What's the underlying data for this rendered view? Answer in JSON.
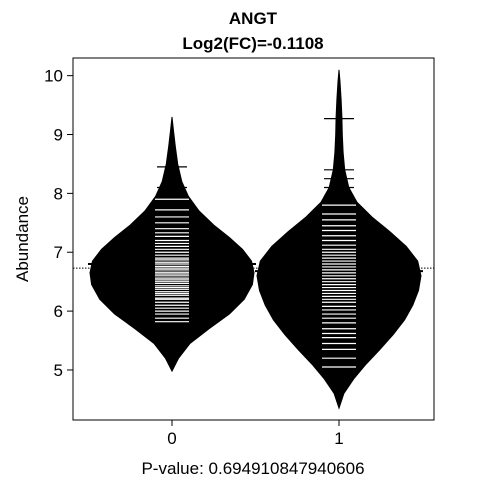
{
  "chart_data": {
    "type": "beanplot",
    "title": "ANGT",
    "subtitle": "Log2(FC)=-0.1108",
    "xlabel": "P-value: 0.694910847940606",
    "ylabel": "Abundance",
    "categories": [
      "0",
      "1"
    ],
    "ylim": [
      4.15,
      10.3
    ],
    "yticks": [
      5,
      6,
      7,
      8,
      9,
      10
    ],
    "overall_mean": 6.73,
    "grid": false,
    "legend": "none",
    "colors": {
      "bean": "#000000",
      "lines": "#ffffff",
      "axes": "#000000"
    },
    "groups": [
      {
        "name": "0",
        "mean": 6.8,
        "range": [
          4.98,
          9.3
        ],
        "density": [
          [
            4.98,
            0.0
          ],
          [
            5.2,
            0.08
          ],
          [
            5.45,
            0.22
          ],
          [
            5.7,
            0.45
          ],
          [
            5.95,
            0.7
          ],
          [
            6.2,
            0.88
          ],
          [
            6.45,
            0.98
          ],
          [
            6.65,
            1.0
          ],
          [
            6.85,
            0.97
          ],
          [
            7.05,
            0.86
          ],
          [
            7.25,
            0.7
          ],
          [
            7.45,
            0.52
          ],
          [
            7.7,
            0.33
          ],
          [
            7.95,
            0.2
          ],
          [
            8.2,
            0.12
          ],
          [
            8.5,
            0.07
          ],
          [
            8.8,
            0.04
          ],
          [
            9.05,
            0.02
          ],
          [
            9.3,
            0.0
          ]
        ],
        "observations": [
          5.82,
          5.88,
          5.95,
          6.0,
          6.05,
          6.1,
          6.15,
          6.2,
          6.22,
          6.27,
          6.3,
          6.33,
          6.37,
          6.4,
          6.43,
          6.47,
          6.5,
          6.53,
          6.56,
          6.6,
          6.63,
          6.66,
          6.7,
          6.73,
          6.76,
          6.8,
          6.83,
          6.87,
          6.9,
          6.95,
          7.0,
          7.05,
          7.1,
          7.15,
          7.2,
          7.27,
          7.33,
          7.4,
          7.5,
          7.6,
          7.72,
          7.9,
          8.1,
          8.45
        ]
      },
      {
        "name": "1",
        "mean": 6.68,
        "range": [
          4.35,
          10.1
        ],
        "density": [
          [
            4.35,
            0.0
          ],
          [
            4.6,
            0.06
          ],
          [
            4.85,
            0.18
          ],
          [
            5.1,
            0.33
          ],
          [
            5.35,
            0.5
          ],
          [
            5.6,
            0.66
          ],
          [
            5.85,
            0.8
          ],
          [
            6.1,
            0.9
          ],
          [
            6.35,
            0.97
          ],
          [
            6.6,
            1.0
          ],
          [
            6.85,
            0.96
          ],
          [
            7.1,
            0.82
          ],
          [
            7.35,
            0.62
          ],
          [
            7.6,
            0.4
          ],
          [
            7.85,
            0.22
          ],
          [
            8.1,
            0.12
          ],
          [
            8.4,
            0.07
          ],
          [
            8.7,
            0.05
          ],
          [
            9.0,
            0.04
          ],
          [
            9.3,
            0.035
          ],
          [
            9.6,
            0.025
          ],
          [
            9.9,
            0.012
          ],
          [
            10.1,
            0.0
          ]
        ],
        "observations": [
          5.05,
          5.2,
          5.35,
          5.45,
          5.55,
          5.62,
          5.7,
          5.8,
          5.88,
          5.95,
          6.02,
          6.08,
          6.15,
          6.2,
          6.25,
          6.3,
          6.35,
          6.4,
          6.45,
          6.5,
          6.55,
          6.6,
          6.65,
          6.7,
          6.75,
          6.8,
          6.85,
          6.9,
          6.95,
          7.0,
          7.05,
          7.12,
          7.2,
          7.28,
          7.37,
          7.45,
          7.55,
          7.65,
          7.8,
          7.95,
          8.1,
          8.25,
          8.4,
          9.27
        ]
      }
    ]
  }
}
